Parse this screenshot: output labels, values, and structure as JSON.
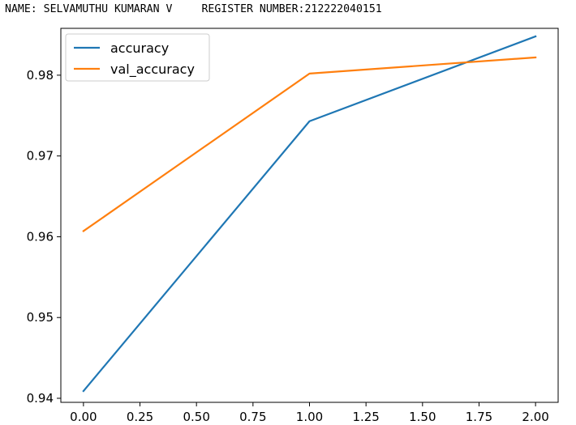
{
  "header": {
    "name_text": "NAME: SELVAMUTHU KUMARAN V",
    "register_text": "REGISTER NUMBER:212222040151"
  },
  "chart_data": {
    "type": "line",
    "title": "",
    "xlabel": "",
    "ylabel": "",
    "xlim": [
      -0.1,
      2.1
    ],
    "ylim": [
      0.9395,
      0.9858
    ],
    "xticks": [
      0.0,
      0.25,
      0.5,
      0.75,
      1.0,
      1.25,
      1.5,
      1.75,
      2.0
    ],
    "xtick_labels": [
      "0.00",
      "0.25",
      "0.50",
      "0.75",
      "1.00",
      "1.25",
      "1.50",
      "1.75",
      "2.00"
    ],
    "yticks": [
      0.94,
      0.95,
      0.96,
      0.97,
      0.98
    ],
    "ytick_labels": [
      "0.94",
      "0.95",
      "0.96",
      "0.97",
      "0.98"
    ],
    "grid": false,
    "legend_position": "top-left",
    "x": [
      0,
      1,
      2
    ],
    "series": [
      {
        "name": "accuracy",
        "color": "#1f77b4",
        "values": [
          0.9409,
          0.9743,
          0.9848
        ]
      },
      {
        "name": "val_accuracy",
        "color": "#ff7f0e",
        "values": [
          0.9607,
          0.9802,
          0.9822
        ]
      }
    ]
  }
}
